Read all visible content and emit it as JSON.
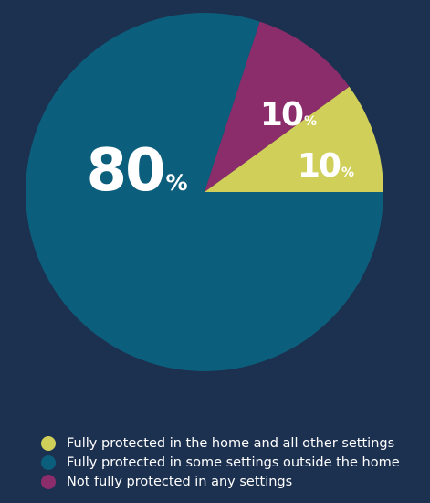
{
  "chart_data": {
    "type": "pie",
    "slices": [
      {
        "label": "Fully protected in the home and all other settings",
        "value": 10,
        "value_label": "10",
        "color": "#cfcf5a"
      },
      {
        "label": "Fully protected in some settings outside the home",
        "value": 80,
        "value_label": "80",
        "color": "#0c5f7c"
      },
      {
        "label": "Not fully protected in any settings",
        "value": 10,
        "value_label": "10",
        "color": "#8c2d6b"
      }
    ],
    "unit_symbol": "%",
    "legend_position": "bottom"
  }
}
